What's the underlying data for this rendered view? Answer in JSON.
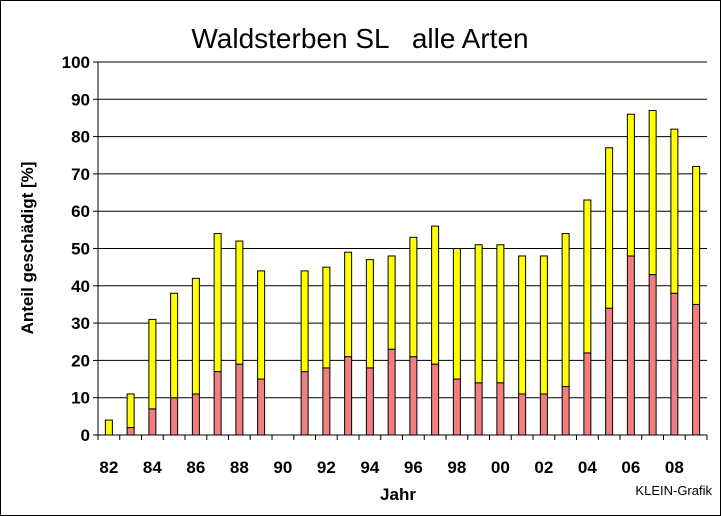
{
  "chart_data": {
    "type": "bar",
    "stacked": true,
    "title": "Waldsterben SL   alle Arten",
    "xlabel": "Jahr",
    "ylabel": "Anteil geschädigt [%]",
    "ylim": [
      0,
      100
    ],
    "yticks": [
      0,
      10,
      20,
      30,
      40,
      50,
      60,
      70,
      80,
      90,
      100
    ],
    "grid": true,
    "legend": "none",
    "categories": [
      "82",
      "83",
      "84",
      "85",
      "86",
      "87",
      "88",
      "89",
      "90",
      "91",
      "92",
      "93",
      "94",
      "95",
      "96",
      "97",
      "98",
      "99",
      "00",
      "01",
      "02",
      "03",
      "04",
      "05",
      "06",
      "07",
      "08",
      "09"
    ],
    "xtick_labels": [
      "82",
      "84",
      "86",
      "88",
      "90",
      "92",
      "94",
      "96",
      "98",
      "00",
      "02",
      "04",
      "06",
      "08"
    ],
    "series": [
      {
        "color": "#f08080",
        "values": [
          0,
          2,
          7,
          10,
          11,
          17,
          19,
          15,
          null,
          17,
          18,
          21,
          18,
          23,
          21,
          19,
          15,
          14,
          14,
          11,
          11,
          13,
          22,
          34,
          48,
          43,
          38,
          35
        ]
      },
      {
        "color": "#ffff00",
        "values": [
          4,
          9,
          24,
          28,
          31,
          37,
          33,
          29,
          null,
          27,
          27,
          28,
          29,
          25,
          32,
          37,
          35,
          37,
          37,
          37,
          37,
          41,
          41,
          43,
          38,
          44,
          44,
          37
        ]
      }
    ],
    "credit": "KLEIN-Grafik"
  }
}
